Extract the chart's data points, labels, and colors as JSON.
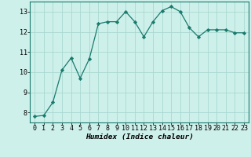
{
  "x": [
    0,
    1,
    2,
    3,
    4,
    5,
    6,
    7,
    8,
    9,
    10,
    11,
    12,
    13,
    14,
    15,
    16,
    17,
    18,
    19,
    20,
    21,
    22,
    23
  ],
  "y": [
    7.8,
    7.85,
    8.5,
    10.1,
    10.7,
    9.7,
    10.65,
    12.4,
    12.5,
    12.5,
    13.0,
    12.5,
    11.75,
    12.5,
    13.05,
    13.25,
    13.0,
    12.2,
    11.75,
    12.1,
    12.1,
    12.1,
    11.95,
    11.95
  ],
  "line_color": "#1a7a6e",
  "marker": "D",
  "marker_size": 2.2,
  "bg_color": "#cef0ea",
  "grid_color": "#a8d8d0",
  "xlabel": "Humidex (Indice chaleur)",
  "ylim": [
    7.5,
    13.5
  ],
  "xlim": [
    -0.5,
    23.5
  ],
  "yticks": [
    8,
    9,
    10,
    11,
    12,
    13
  ],
  "xticks": [
    0,
    1,
    2,
    3,
    4,
    5,
    6,
    7,
    8,
    9,
    10,
    11,
    12,
    13,
    14,
    15,
    16,
    17,
    18,
    19,
    20,
    21,
    22,
    23
  ],
  "xlabel_fontsize": 6.8,
  "tick_fontsize": 6.0,
  "linewidth": 0.9
}
